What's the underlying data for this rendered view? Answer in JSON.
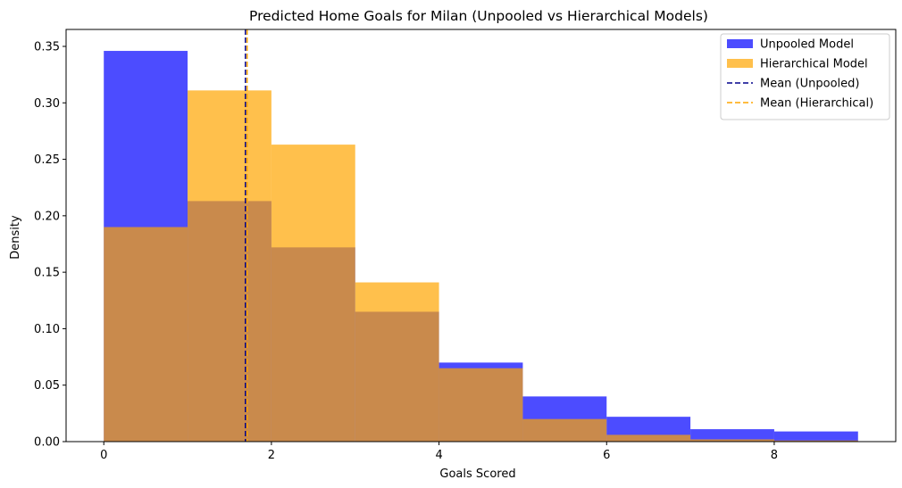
{
  "chart_data": {
    "type": "bar",
    "title": "Predicted Home Goals for Milan (Unpooled vs Hierarchical Models)",
    "xlabel": "Goals Scored",
    "ylabel": "Density",
    "xlim": [
      -0.45,
      9.45
    ],
    "ylim": [
      0,
      0.365
    ],
    "xticks": [
      0,
      2,
      4,
      6,
      8
    ],
    "yticks": [
      0.0,
      0.05,
      0.1,
      0.15,
      0.2,
      0.25,
      0.3,
      0.35
    ],
    "ytick_labels": [
      "0.00",
      "0.05",
      "0.10",
      "0.15",
      "0.20",
      "0.25",
      "0.30",
      "0.35"
    ],
    "bin_edges": [
      0,
      1,
      2,
      3,
      4,
      5,
      6,
      7,
      8,
      9
    ],
    "grid": false,
    "legend_position": "top-right",
    "series": [
      {
        "name": "Unpooled Model",
        "color": "#0000ff",
        "alpha": 0.7,
        "values": [
          0.346,
          0.213,
          0.172,
          0.115,
          0.07,
          0.04,
          0.022,
          0.011,
          0.009
        ]
      },
      {
        "name": "Hierarchical Model",
        "color": "#ffa500",
        "alpha": 0.7,
        "values": [
          0.19,
          0.311,
          0.263,
          0.141,
          0.065,
          0.02,
          0.006,
          0.002,
          0.001
        ]
      }
    ],
    "mean_lines": [
      {
        "name": "Mean (Unpooled)",
        "color": "#00008b",
        "value": 1.69
      },
      {
        "name": "Mean (Hierarchical)",
        "color": "#ffa500",
        "value": 1.71
      }
    ]
  }
}
